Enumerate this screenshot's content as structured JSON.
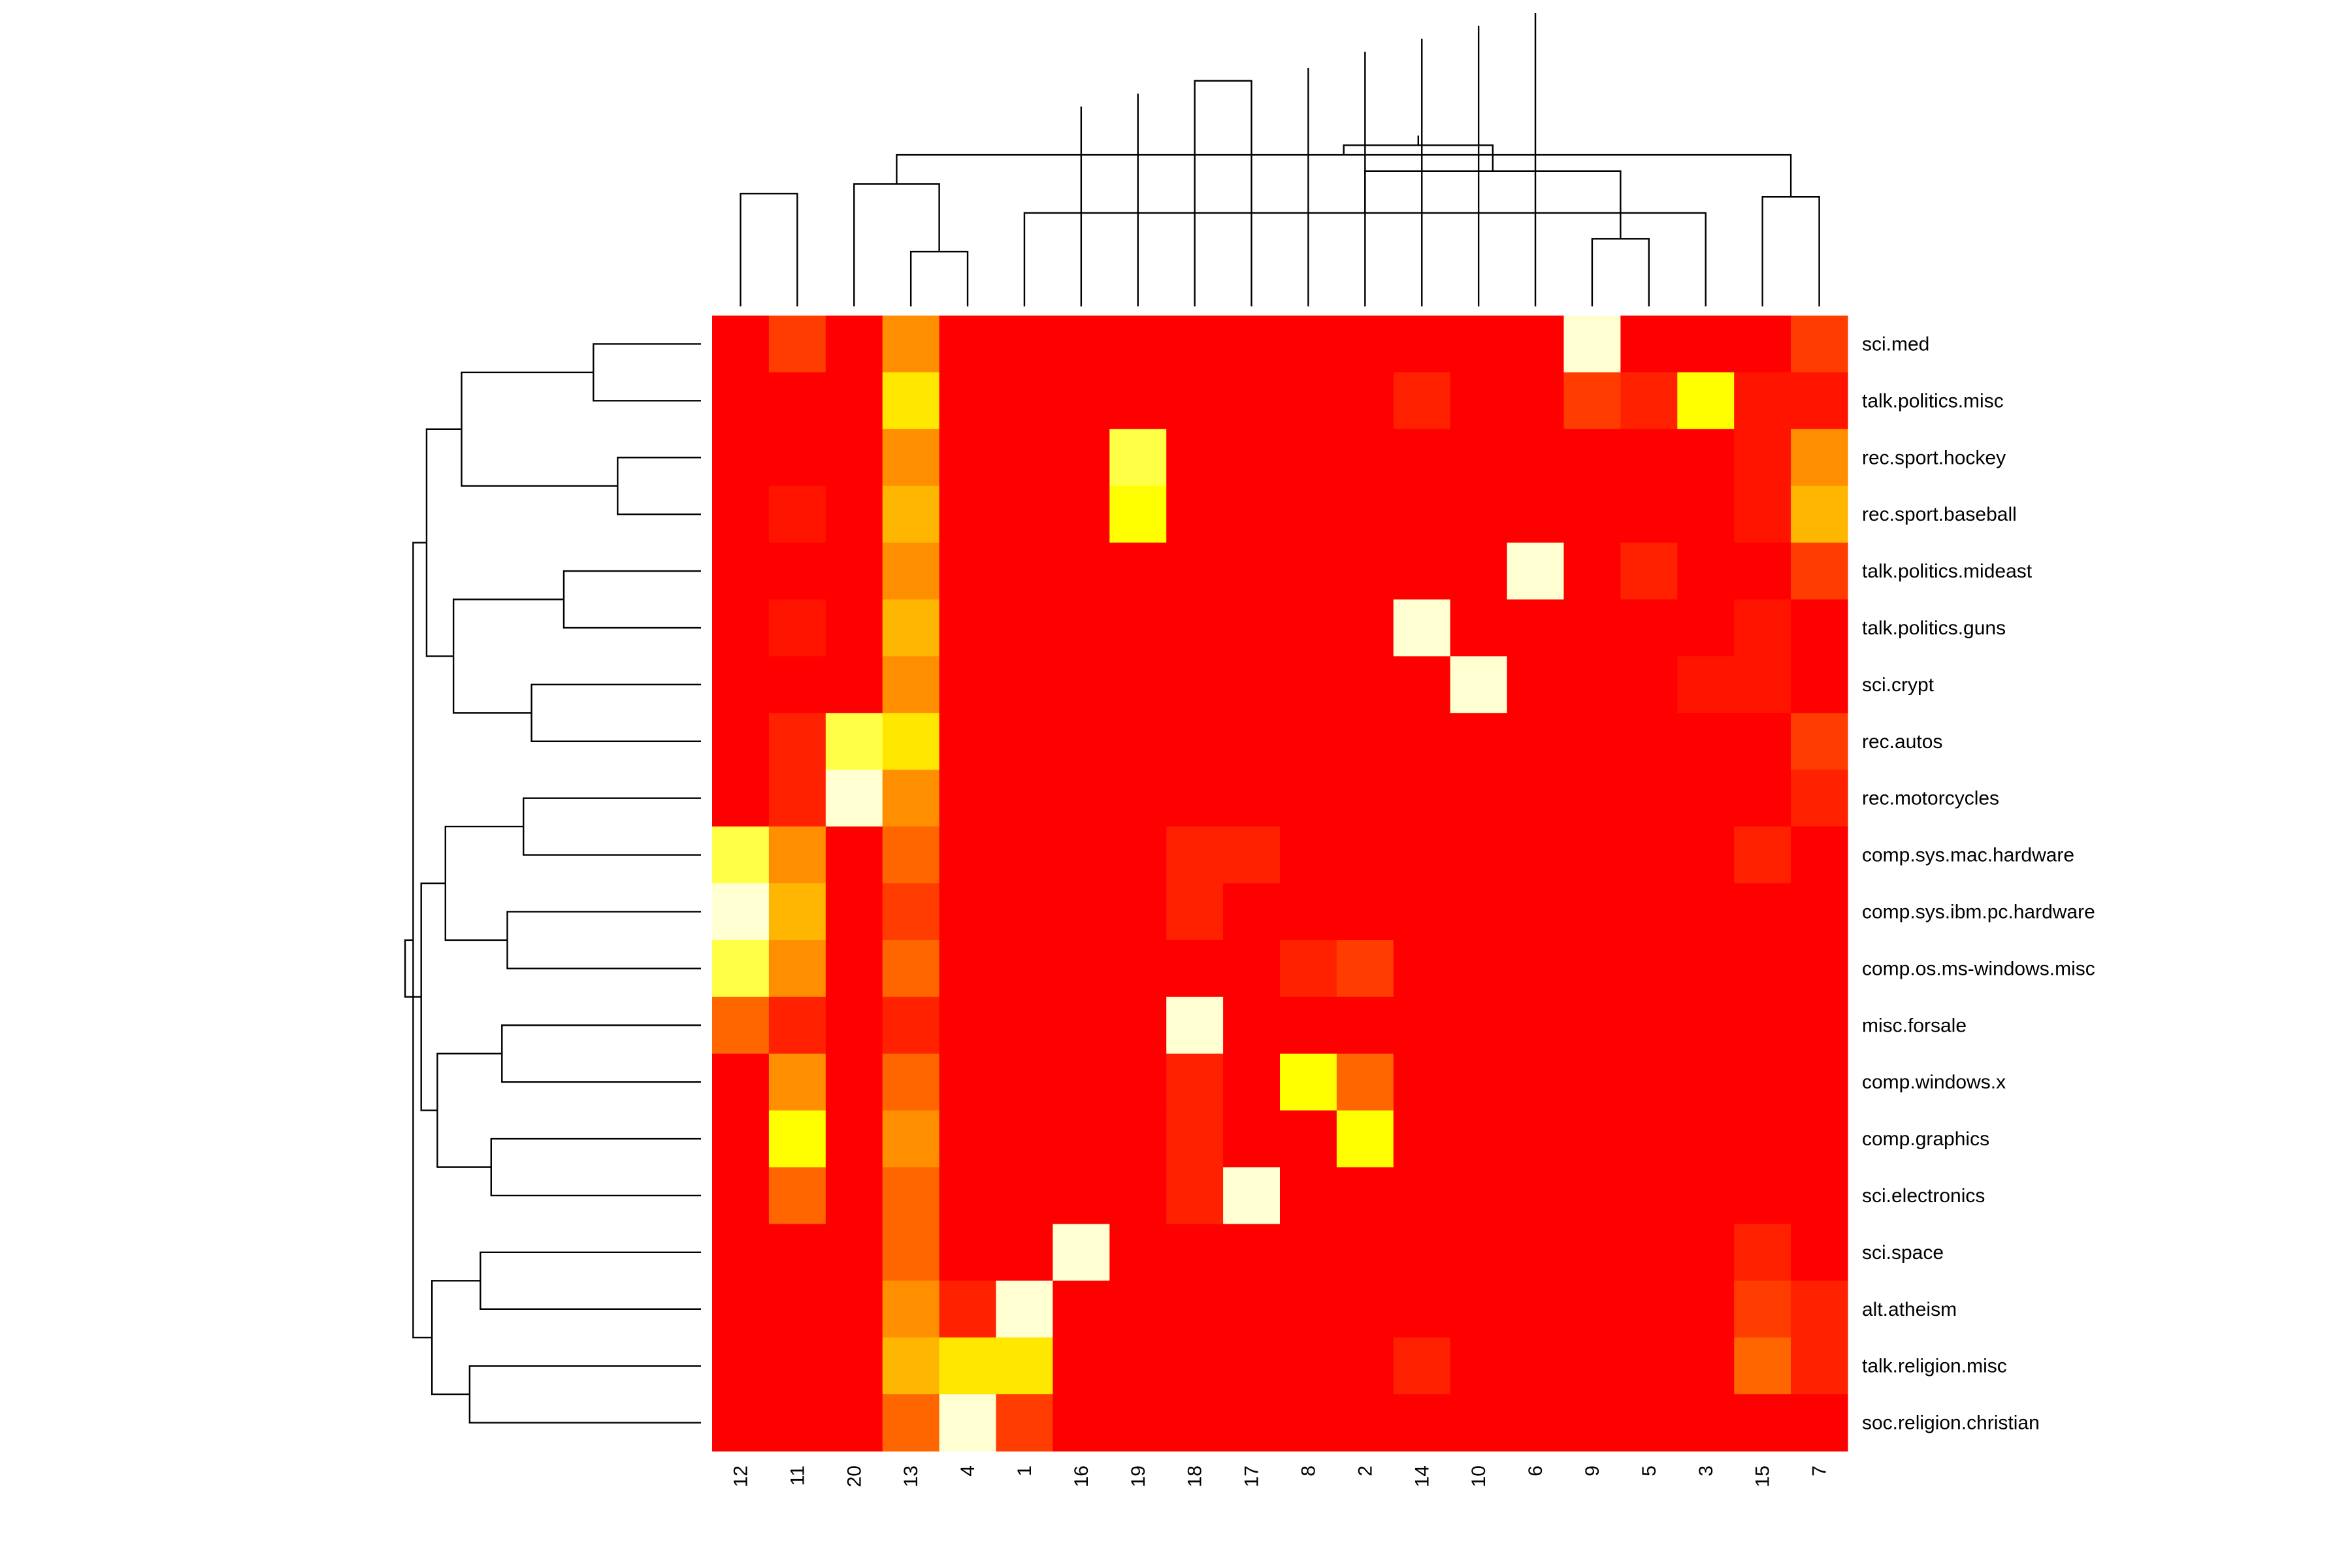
{
  "chart_data": {
    "type": "heatmap",
    "title": "",
    "xlabel": "",
    "ylabel": "",
    "x_categories": [
      "12",
      "11",
      "20",
      "13",
      "4",
      "1",
      "16",
      "19",
      "18",
      "17",
      "8",
      "2",
      "14",
      "10",
      "6",
      "9",
      "5",
      "3",
      "15",
      "7"
    ],
    "y_categories": [
      "sci.med",
      "talk.politics.misc",
      "rec.sport.hockey",
      "rec.sport.baseball",
      "talk.politics.mideast",
      "talk.politics.guns",
      "sci.crypt",
      "rec.autos",
      "rec.motorcycles",
      "comp.sys.mac.hardware",
      "comp.sys.ibm.pc.hardware",
      "comp.os.ms-windows.misc",
      "misc.forsale",
      "comp.windows.x",
      "comp.graphics",
      "sci.electronics",
      "sci.space",
      "alt.atheism",
      "talk.religion.misc",
      "soc.religion.christian"
    ],
    "value_range": [
      0,
      1
    ],
    "colormap": "heat (red → orange → yellow → pale yellow)",
    "values": [
      [
        0.0,
        0.15,
        0.0,
        0.4,
        0.0,
        0.0,
        0.0,
        0.0,
        0.0,
        0.0,
        0.0,
        0.0,
        0.0,
        0.0,
        0.0,
        1.0,
        0.0,
        0.0,
        0.0,
        0.15
      ],
      [
        0.0,
        0.0,
        0.0,
        0.75,
        0.0,
        0.0,
        0.0,
        0.0,
        0.0,
        0.0,
        0.0,
        0.0,
        0.08,
        0.0,
        0.0,
        0.15,
        0.08,
        0.85,
        0.05,
        0.05
      ],
      [
        0.0,
        0.0,
        0.0,
        0.4,
        0.0,
        0.0,
        0.0,
        0.9,
        0.0,
        0.0,
        0.0,
        0.0,
        0.0,
        0.0,
        0.0,
        0.0,
        0.0,
        0.0,
        0.05,
        0.4
      ],
      [
        0.0,
        0.05,
        0.0,
        0.55,
        0.0,
        0.0,
        0.0,
        0.85,
        0.0,
        0.0,
        0.0,
        0.0,
        0.0,
        0.0,
        0.0,
        0.0,
        0.0,
        0.0,
        0.05,
        0.55
      ],
      [
        0.0,
        0.0,
        0.0,
        0.4,
        0.0,
        0.0,
        0.0,
        0.0,
        0.0,
        0.0,
        0.0,
        0.0,
        0.0,
        0.0,
        1.0,
        0.0,
        0.08,
        0.0,
        0.0,
        0.15
      ],
      [
        0.0,
        0.05,
        0.0,
        0.55,
        0.0,
        0.0,
        0.0,
        0.0,
        0.0,
        0.0,
        0.0,
        0.0,
        1.0,
        0.0,
        0.0,
        0.0,
        0.0,
        0.0,
        0.05,
        0.0
      ],
      [
        0.0,
        0.0,
        0.0,
        0.4,
        0.0,
        0.0,
        0.0,
        0.0,
        0.0,
        0.0,
        0.0,
        0.0,
        0.0,
        1.0,
        0.0,
        0.0,
        0.0,
        0.05,
        0.05,
        0.0
      ],
      [
        0.0,
        0.08,
        0.9,
        0.75,
        0.0,
        0.0,
        0.0,
        0.0,
        0.0,
        0.0,
        0.0,
        0.0,
        0.0,
        0.0,
        0.0,
        0.0,
        0.0,
        0.0,
        0.0,
        0.15
      ],
      [
        0.0,
        0.08,
        1.0,
        0.4,
        0.0,
        0.0,
        0.0,
        0.0,
        0.0,
        0.0,
        0.0,
        0.0,
        0.0,
        0.0,
        0.0,
        0.0,
        0.0,
        0.0,
        0.0,
        0.08
      ],
      [
        0.9,
        0.4,
        0.0,
        0.25,
        0.0,
        0.0,
        0.0,
        0.0,
        0.08,
        0.08,
        0.0,
        0.0,
        0.0,
        0.0,
        0.0,
        0.0,
        0.0,
        0.0,
        0.08,
        0.0
      ],
      [
        1.0,
        0.55,
        0.0,
        0.15,
        0.0,
        0.0,
        0.0,
        0.0,
        0.08,
        0.0,
        0.0,
        0.0,
        0.0,
        0.0,
        0.0,
        0.0,
        0.0,
        0.0,
        0.0,
        0.0
      ],
      [
        0.9,
        0.4,
        0.0,
        0.25,
        0.0,
        0.0,
        0.0,
        0.0,
        0.0,
        0.0,
        0.08,
        0.15,
        0.0,
        0.0,
        0.0,
        0.0,
        0.0,
        0.0,
        0.0,
        0.0
      ],
      [
        0.25,
        0.08,
        0.0,
        0.08,
        0.0,
        0.0,
        0.0,
        0.0,
        1.0,
        0.0,
        0.0,
        0.0,
        0.0,
        0.0,
        0.0,
        0.0,
        0.0,
        0.0,
        0.0,
        0.0
      ],
      [
        0.0,
        0.4,
        0.0,
        0.25,
        0.0,
        0.0,
        0.0,
        0.0,
        0.08,
        0.0,
        0.85,
        0.25,
        0.0,
        0.0,
        0.0,
        0.0,
        0.0,
        0.0,
        0.0,
        0.0
      ],
      [
        0.0,
        0.85,
        0.0,
        0.4,
        0.0,
        0.0,
        0.0,
        0.0,
        0.08,
        0.0,
        0.0,
        0.85,
        0.0,
        0.0,
        0.0,
        0.0,
        0.0,
        0.0,
        0.0,
        0.0
      ],
      [
        0.0,
        0.25,
        0.0,
        0.25,
        0.0,
        0.0,
        0.0,
        0.0,
        0.08,
        1.0,
        0.0,
        0.0,
        0.0,
        0.0,
        0.0,
        0.0,
        0.0,
        0.0,
        0.0,
        0.0
      ],
      [
        0.0,
        0.0,
        0.0,
        0.25,
        0.0,
        0.0,
        1.0,
        0.0,
        0.0,
        0.0,
        0.0,
        0.0,
        0.0,
        0.0,
        0.0,
        0.0,
        0.0,
        0.0,
        0.08,
        0.0
      ],
      [
        0.0,
        0.0,
        0.0,
        0.4,
        0.08,
        1.0,
        0.0,
        0.0,
        0.0,
        0.0,
        0.0,
        0.0,
        0.0,
        0.0,
        0.0,
        0.0,
        0.0,
        0.0,
        0.15,
        0.08
      ],
      [
        0.0,
        0.0,
        0.0,
        0.55,
        0.75,
        0.75,
        0.0,
        0.0,
        0.0,
        0.0,
        0.0,
        0.0,
        0.08,
        0.0,
        0.0,
        0.0,
        0.0,
        0.0,
        0.25,
        0.08
      ],
      [
        0.0,
        0.0,
        0.0,
        0.25,
        1.0,
        0.15,
        0.0,
        0.0,
        0.0,
        0.0,
        0.0,
        0.0,
        0.0,
        0.0,
        0.0,
        0.0,
        0.0,
        0.0,
        0.0,
        0.0
      ]
    ],
    "column_dendrogram": [
      [
        0,
        1,
        0.35
      ],
      [
        3,
        4,
        0.17
      ],
      [
        15,
        16,
        0.21
      ],
      [
        5,
        17,
        0.29
      ],
      [
        18,
        19,
        0.34
      ],
      [
        2,
        21,
        0.38
      ],
      [
        22,
        23,
        0.42
      ],
      [
        24,
        25,
        0.47
      ],
      [
        26,
        27,
        0.5
      ],
      [
        28,
        29,
        0.53
      ],
      [
        30,
        31,
        0.55
      ],
      [
        6,
        32,
        0.62
      ],
      [
        7,
        33,
        0.66
      ],
      [
        8,
        9,
        0.7
      ],
      [
        10,
        34,
        0.74
      ],
      [
        11,
        35,
        0.79
      ],
      [
        12,
        36,
        0.83
      ],
      [
        13,
        37,
        0.87
      ],
      [
        14,
        38,
        0.91
      ]
    ],
    "row_dendrogram": [
      [
        0,
        1,
        0.4
      ],
      [
        2,
        3,
        0.31
      ],
      [
        4,
        5,
        0.51
      ],
      [
        6,
        7,
        0.63
      ],
      [
        8,
        9,
        0.66
      ],
      [
        10,
        11,
        0.72
      ],
      [
        12,
        13,
        0.74
      ],
      [
        14,
        15,
        0.78
      ],
      [
        16,
        17,
        0.82
      ],
      [
        18,
        19,
        0.86
      ],
      [
        20,
        21,
        0.89
      ],
      [
        22,
        23,
        0.92
      ],
      [
        24,
        25,
        0.95
      ],
      [
        26,
        27,
        0.98
      ],
      [
        28,
        29,
        1.0
      ],
      [
        30,
        31,
        1.02
      ],
      [
        32,
        33,
        1.04
      ],
      [
        34,
        35,
        1.07
      ],
      [
        36,
        37,
        1.1
      ]
    ]
  }
}
